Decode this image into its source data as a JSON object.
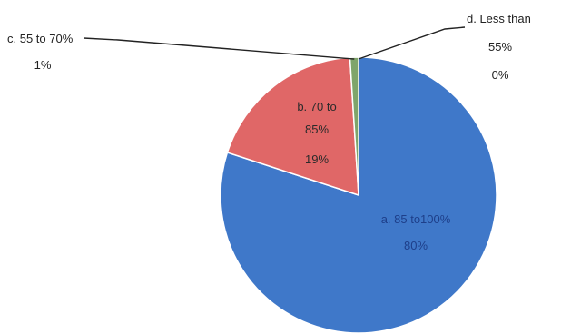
{
  "chart_data": {
    "type": "pie",
    "title": "",
    "legend": "none",
    "slices": [
      {
        "id": "a",
        "label_line1": "a. 85 to100%",
        "label_line2": "",
        "value_text": "80%",
        "value": 80,
        "color": "#3f78c9"
      },
      {
        "id": "b",
        "label_line1": "b. 70 to",
        "label_line2": "85%",
        "value_text": "19%",
        "value": 19,
        "color": "#e06767"
      },
      {
        "id": "c",
        "label_line1": "c. 55 to 70%",
        "label_line2": "",
        "value_text": "1%",
        "value": 1,
        "color": "#7fa56b"
      },
      {
        "id": "d",
        "label_line1": "d. Less than",
        "label_line2": "55%",
        "value_text": "0%",
        "value": 0,
        "color": "#c9c06a"
      }
    ]
  }
}
